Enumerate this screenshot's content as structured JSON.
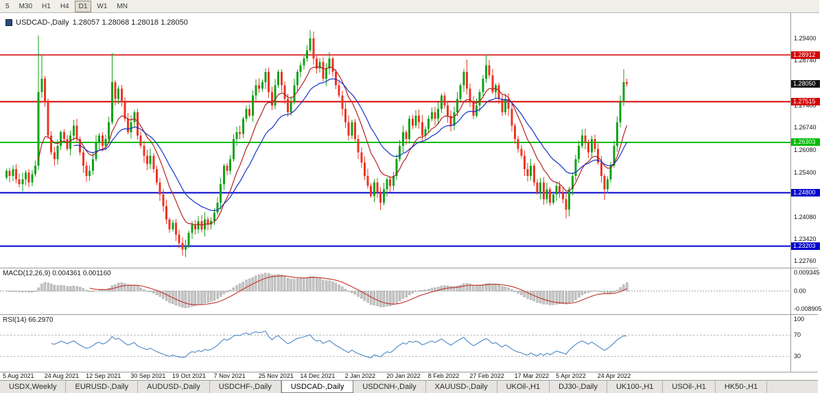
{
  "toolbar": {
    "timeframes": [
      {
        "label": "5",
        "active": false
      },
      {
        "label": "M30",
        "active": false
      },
      {
        "label": "H1",
        "active": false
      },
      {
        "label": "H4",
        "active": false
      },
      {
        "label": "D1",
        "active": true
      },
      {
        "label": "W1",
        "active": false
      },
      {
        "label": "MN",
        "active": false
      }
    ]
  },
  "chart_title": {
    "symbol_text": "USDCAD-,Daily",
    "ohlc_text": "1.28057 1.28068 1.28018 1.28050"
  },
  "chart_data": {
    "type": "candlestick",
    "symbol": "USDCAD-",
    "timeframe": "Daily",
    "current_bar": {
      "open": "1.28057",
      "high": "1.28068",
      "low": "1.28018",
      "close": "1.28050"
    },
    "colors": {
      "up": "#0fa318",
      "down": "#ee3425",
      "ma_fast": "#b22222",
      "ma_slow": "#1430c8",
      "level_red": "#d40000",
      "level_green": "#00bb00",
      "level_blue": "#0000cc",
      "current_badge": "#111111",
      "macd_hist": "#c6c6c6",
      "macd_signal": "#c03028",
      "rsi_line": "#4a86c8"
    },
    "closes": [
      1.2545,
      1.253,
      1.255,
      1.252,
      1.2505,
      1.252,
      1.254,
      1.251,
      1.2535,
      1.256,
      1.278,
      1.282,
      1.275,
      1.265,
      1.26,
      1.258,
      1.262,
      1.266,
      1.264,
      1.261,
      1.265,
      1.268,
      1.264,
      1.26,
      1.256,
      1.253,
      1.2545,
      1.258,
      1.263,
      1.265,
      1.262,
      1.264,
      1.269,
      1.281,
      1.276,
      1.279,
      1.275,
      1.27,
      1.266,
      1.269,
      1.272,
      1.265,
      1.262,
      1.259,
      1.2565,
      1.259,
      1.255,
      1.251,
      1.2475,
      1.244,
      1.24,
      1.237,
      1.239,
      1.2355,
      1.233,
      1.231,
      1.232,
      1.236,
      1.2385,
      1.237,
      1.2395,
      1.237,
      1.24,
      1.2385,
      1.2395,
      1.242,
      1.245,
      1.2505,
      1.256,
      1.2545,
      1.258,
      1.264,
      1.266,
      1.2655,
      1.27,
      1.273,
      1.271,
      1.277,
      1.28,
      1.279,
      1.281,
      1.284,
      1.278,
      1.274,
      1.28,
      1.284,
      1.28,
      1.276,
      1.272,
      1.275,
      1.28,
      1.284,
      1.286,
      1.288,
      1.2905,
      1.294,
      1.288,
      1.285,
      1.287,
      1.282,
      1.285,
      1.288,
      1.284,
      1.28,
      1.277,
      1.273,
      1.269,
      1.265,
      1.269,
      1.264,
      1.26,
      1.257,
      1.253,
      1.25,
      1.247,
      1.251,
      1.248,
      1.245,
      1.249,
      1.252,
      1.25,
      1.253,
      1.258,
      1.262,
      1.266,
      1.264,
      1.27,
      1.268,
      1.271,
      1.269,
      1.265,
      1.267,
      1.27,
      1.272,
      1.27,
      1.273,
      1.277,
      1.274,
      1.271,
      1.268,
      1.272,
      1.276,
      1.28,
      1.284,
      1.279,
      1.275,
      1.271,
      1.274,
      1.278,
      1.282,
      1.286,
      1.283,
      1.278,
      1.28,
      1.276,
      1.272,
      1.276,
      1.273,
      1.268,
      1.264,
      1.261,
      1.259,
      1.255,
      1.253,
      1.256,
      1.251,
      1.248,
      1.251,
      1.246,
      1.249,
      1.245,
      1.2475,
      1.25,
      1.248,
      1.246,
      1.243,
      1.249,
      1.253,
      1.258,
      1.262,
      1.265,
      1.263,
      1.26,
      1.264,
      1.261,
      1.257,
      1.253,
      1.249,
      1.252,
      1.256,
      1.262,
      1.269,
      1.275,
      1.281,
      1.2805
    ],
    "spike_highs": {
      "10": 1.2949,
      "11": 1.289,
      "33": 1.2896,
      "95": 1.2965,
      "144": 1.2877,
      "150": 1.2892,
      "193": 1.2848
    },
    "spike_lows": {
      "10": 1.2548,
      "55": 1.2292,
      "56": 1.2288,
      "117": 1.2428,
      "175": 1.2403,
      "187": 1.2458
    },
    "levels": [
      {
        "price": 1.28912,
        "label": "1.28912",
        "color": "#d40000"
      },
      {
        "price": 1.27515,
        "label": "1.27515",
        "color": "#d40000"
      },
      {
        "price": 1.26303,
        "label": "1.26303",
        "color": "#00bb00"
      },
      {
        "price": 1.248,
        "label": "1.24800",
        "color": "#0000cc"
      },
      {
        "price": 1.23203,
        "label": "1.23203",
        "color": "#0000cc"
      }
    ],
    "current_price": {
      "value": 1.2805,
      "label": "1.28050"
    },
    "y_axis_labels": [
      "1.29400",
      "1.28740",
      "1.27400",
      "1.26740",
      "1.26080",
      "1.25400",
      "1.24080",
      "1.23420",
      "1.22760"
    ],
    "x_axis": [
      {
        "label": "5 Aug 2021",
        "i": 0
      },
      {
        "label": "24 Aug 2021",
        "i": 13
      },
      {
        "label": "12 Sep 2021",
        "i": 26
      },
      {
        "label": "30 Sep 2021",
        "i": 40
      },
      {
        "label": "19 Oct 2021",
        "i": 53
      },
      {
        "label": "7 Nov 2021",
        "i": 66
      },
      {
        "label": "25 Nov 2021",
        "i": 80
      },
      {
        "label": "14 Dec 2021",
        "i": 93
      },
      {
        "label": "2 Jan 2022",
        "i": 107
      },
      {
        "label": "20 Jan 2022",
        "i": 120
      },
      {
        "label": "8 Feb 2022",
        "i": 133
      },
      {
        "label": "27 Feb 2022",
        "i": 146
      },
      {
        "label": "17 Mar 2022",
        "i": 160
      },
      {
        "label": "5 Apr 2022",
        "i": 173
      },
      {
        "label": "24 Apr 2022",
        "i": 186
      }
    ],
    "moving_averages": [
      {
        "period": 10,
        "role": "fast"
      },
      {
        "period": 21,
        "role": "slow"
      }
    ],
    "macd": {
      "name": "MACD(12,26,9)",
      "values_text": "0.004361 0.001160",
      "fast": 12,
      "slow": 26,
      "signal": 9,
      "axis_labels": [
        "0.009345",
        "0.00",
        "-0.008905"
      ]
    },
    "rsi": {
      "name": "RSI(14)",
      "value_text": "66.2970",
      "period": 14,
      "overbought": 70,
      "oversold": 30,
      "axis_labels": [
        "100",
        "70",
        "30"
      ]
    }
  },
  "tabs": [
    {
      "label": "USDX,Weekly",
      "active": false
    },
    {
      "label": "EURUSD-,Daily",
      "active": false
    },
    {
      "label": "AUDUSD-,Daily",
      "active": false
    },
    {
      "label": "USDCHF-,Daily",
      "active": false
    },
    {
      "label": "USDCAD-,Daily",
      "active": true
    },
    {
      "label": "USDCNH-,Daily",
      "active": false
    },
    {
      "label": "XAUUSD-,Daily",
      "active": false
    },
    {
      "label": "UKOil-,H1",
      "active": false
    },
    {
      "label": "DJ30-,Daily",
      "active": false
    },
    {
      "label": "UK100-,H1",
      "active": false
    },
    {
      "label": "USOil-,H1",
      "active": false
    },
    {
      "label": "HK50-,H1",
      "active": false
    }
  ]
}
